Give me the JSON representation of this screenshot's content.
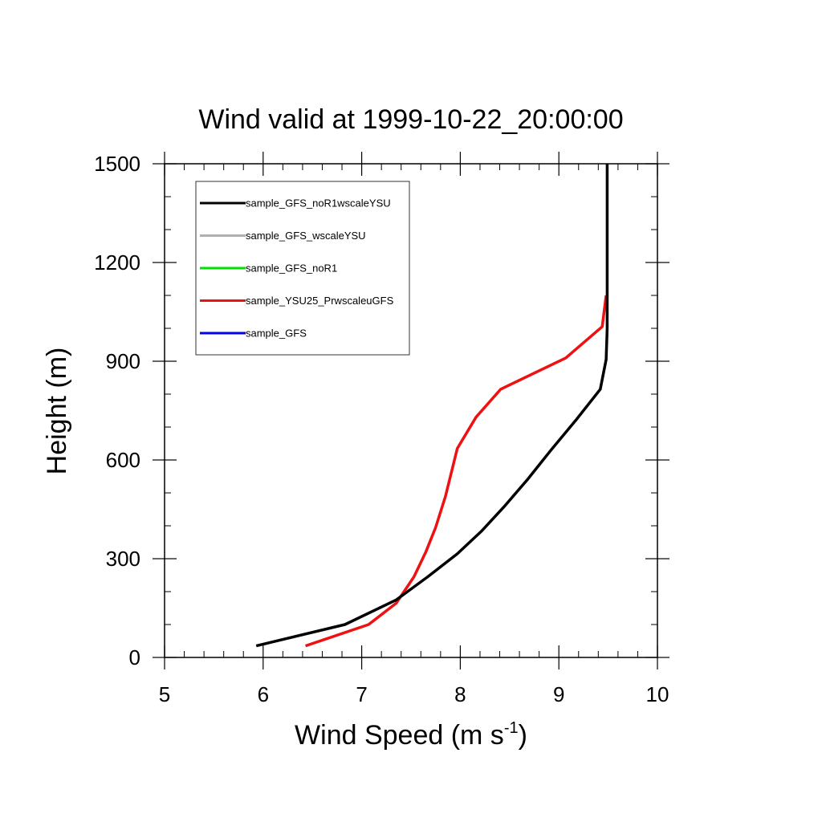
{
  "chart_data": {
    "type": "line",
    "title": "Wind valid at 1999-10-22_20:00:00",
    "xlabel": "Wind Speed (m s",
    "xlabel_superscript": "-1",
    "xlabel_suffix": ")",
    "ylabel": "Height (m)",
    "xlim": [
      5,
      10
    ],
    "ylim": [
      0,
      1500
    ],
    "xticks": [
      5,
      6,
      7,
      8,
      9,
      10
    ],
    "yticks": [
      0,
      300,
      600,
      900,
      1200,
      1500
    ],
    "xtick_labels": [
      "5",
      "6",
      "7",
      "8",
      "9",
      "10"
    ],
    "ytick_labels": [
      "0",
      "300",
      "600",
      "900",
      "1200",
      "1500"
    ],
    "grid": false,
    "legend_position": "top-left",
    "series": [
      {
        "name": "sample_GFS_noR1wscaleYSU",
        "color": "#000000",
        "x": [
          5.93,
          6.83,
          7.35,
          7.67,
          7.97,
          8.22,
          8.45,
          8.68,
          8.92,
          9.17,
          9.42,
          9.48,
          9.49,
          9.49,
          9.49
        ],
        "y": [
          35,
          100,
          175,
          245,
          315,
          385,
          460,
          540,
          630,
          720,
          815,
          905,
          1000,
          1200,
          1500
        ]
      },
      {
        "name": "sample_GFS_wscaleYSU",
        "color": "#b0b0b0",
        "x": [],
        "y": []
      },
      {
        "name": "sample_GFS_noR1",
        "color": "#00e000",
        "x": [],
        "y": []
      },
      {
        "name": "sample_YSU25_PrwscaleuGFS",
        "color": "#ee1111",
        "x": [
          6.43,
          7.07,
          7.35,
          7.53,
          7.65,
          7.75,
          7.85,
          7.97,
          8.16,
          8.41,
          9.07,
          9.44,
          9.48
        ],
        "y": [
          35,
          100,
          165,
          245,
          320,
          395,
          490,
          635,
          730,
          815,
          910,
          1005,
          1100
        ]
      },
      {
        "name": "sample_GFS",
        "color": "#0000ee",
        "x": [],
        "y": []
      }
    ]
  }
}
